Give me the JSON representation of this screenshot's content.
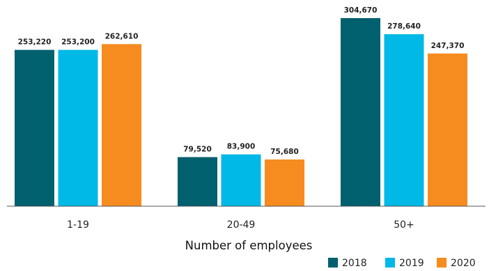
{
  "chart_data": {
    "type": "bar",
    "title": "",
    "xlabel": "Number of employees",
    "ylabel": "",
    "categories": [
      "1-19",
      "20-49",
      "50+"
    ],
    "series": [
      {
        "name": "2018",
        "color": "#00606e",
        "values": [
          253220,
          79520,
          304670
        ],
        "labels": [
          "253,220",
          "79,520",
          "304,670"
        ]
      },
      {
        "name": "2019",
        "color": "#00b9e6",
        "values": [
          253200,
          83900,
          278640
        ],
        "labels": [
          "253,200",
          "83,900",
          "278,640"
        ]
      },
      {
        "name": "2020",
        "color": "#f68b1f",
        "values": [
          262610,
          75680,
          247370
        ],
        "labels": [
          "262,610",
          "75,680",
          "247,370"
        ]
      }
    ],
    "ylim": [
      0,
      360000
    ],
    "grid": false,
    "legend_position": "bottom-right"
  }
}
